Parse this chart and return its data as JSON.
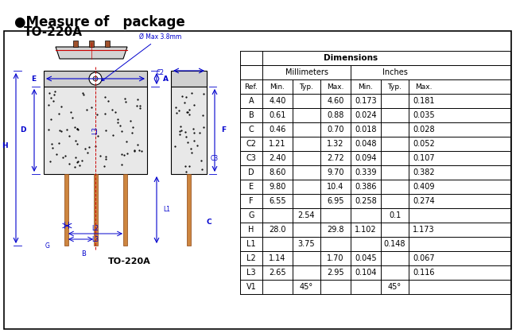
{
  "title_bullet": "●Measure of   package",
  "subtitle": "TO-220A",
  "caption": "TO-220A",
  "bg_color": "#ffffff",
  "border_color": "#000000",
  "table_header": [
    "Ref.",
    "Min.",
    "Typ.",
    "Max.",
    "Min.",
    "Typ.",
    "Max."
  ],
  "col_groups": [
    "Millimeters",
    "Inches"
  ],
  "dim_header": "Dimensions",
  "rows": [
    [
      "A",
      "4.40",
      "",
      "4.60",
      "0.173",
      "",
      "0.181"
    ],
    [
      "B",
      "0.61",
      "",
      "0.88",
      "0.024",
      "",
      "0.035"
    ],
    [
      "C",
      "0.46",
      "",
      "0.70",
      "0.018",
      "",
      "0.028"
    ],
    [
      "C2",
      "1.21",
      "",
      "1.32",
      "0.048",
      "",
      "0.052"
    ],
    [
      "C3",
      "2.40",
      "",
      "2.72",
      "0.094",
      "",
      "0.107"
    ],
    [
      "D",
      "8.60",
      "",
      "9.70",
      "0.339",
      "",
      "0.382"
    ],
    [
      "E",
      "9.80",
      "",
      "10.4",
      "0.386",
      "",
      "0.409"
    ],
    [
      "F",
      "6.55",
      "",
      "6.95",
      "0.258",
      "",
      "0.274"
    ],
    [
      "G",
      "",
      "2.54",
      "",
      "",
      "0.1",
      ""
    ],
    [
      "H",
      "28.0",
      "",
      "29.8",
      "1.102",
      "",
      "1.173"
    ],
    [
      "L1",
      "",
      "3.75",
      "",
      "",
      "0.148",
      ""
    ],
    [
      "L2",
      "1.14",
      "",
      "1.70",
      "0.045",
      "",
      "0.067"
    ],
    [
      "L3",
      "2.65",
      "",
      "2.95",
      "0.104",
      "",
      "0.116"
    ],
    [
      "V1",
      "",
      "45°",
      "",
      "",
      "45°",
      ""
    ]
  ],
  "blue": "#0000cd",
  "red": "#cc0000",
  "brown": "#8B4513",
  "gray_fill": "#c8c8c8",
  "dark_fill": "#808080"
}
